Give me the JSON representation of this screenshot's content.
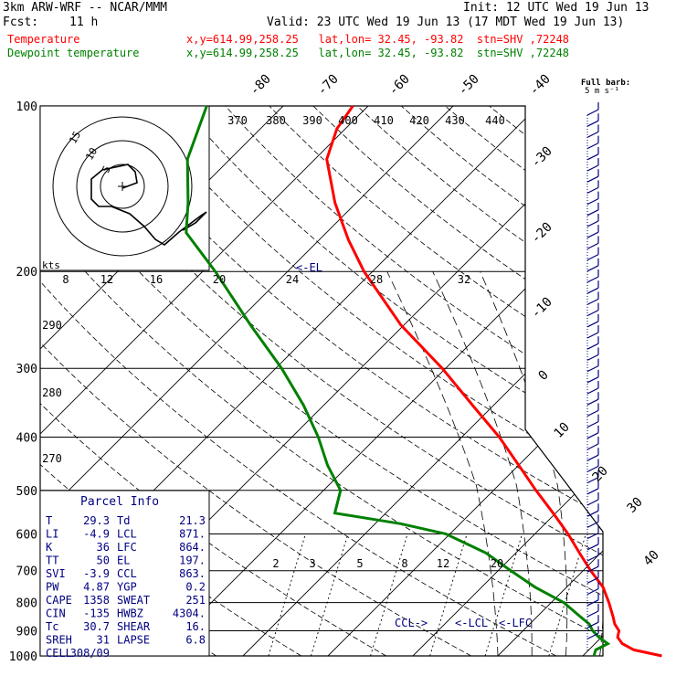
{
  "header": {
    "model": "3km ARW-WRF -- NCAR/MMM",
    "init": "Init: 12 UTC Wed 19 Jun 13",
    "fcst_label": "Fcst:",
    "fcst_value": "11 h",
    "valid": "Valid: 23 UTC Wed 19 Jun 13 (17 MDT Wed 19 Jun 13)",
    "temp_label": "Temperature",
    "temp_loc": "x,y=614.99,258.25   lat,lon= 32.45, -93.82  stn=SHV ,72248",
    "dew_label": "Dewpoint temperature",
    "dew_loc": "x,y=614.99,258.25   lat,lon= 32.45, -93.82  stn=SHV ,72248",
    "barb_note": "Full barb:",
    "barb_unit": "5 m s⁻¹"
  },
  "colors": {
    "temperature": "#ff0000",
    "dewpoint": "#008000",
    "wind": "#000080",
    "hodograph": "#000000"
  },
  "chart_data": [
    {
      "type": "line",
      "title": "Skew-T log-P diagram",
      "y_scale": "log",
      "ylim": [
        1000,
        100
      ],
      "pressure_ticks": [
        100,
        200,
        300,
        400,
        500,
        600,
        700,
        800,
        900,
        1000
      ],
      "isotherm_labels": [
        "-80",
        "-70",
        "-60",
        "-50",
        "-40",
        "-30",
        "-20",
        "-10",
        "0",
        "10",
        "20",
        "30",
        "40"
      ],
      "theta_labels": [
        "370",
        "380",
        "390",
        "400",
        "410",
        "420",
        "430",
        "440"
      ],
      "theta_low_labels": [
        "290",
        "280",
        "270"
      ],
      "mixing_ratio_labels": [
        "2",
        "3",
        "5",
        "8",
        "12",
        "20"
      ],
      "series": [
        {
          "name": "Temperature",
          "unit": "C",
          "points": [
            [
              1000,
              29.3
            ],
            [
              975,
              25.3
            ],
            [
              950,
              23.2
            ],
            [
              925,
              21.9
            ],
            [
              900,
              21.3
            ],
            [
              875,
              20.0
            ],
            [
              850,
              19.0
            ],
            [
              800,
              16.8
            ],
            [
              750,
              14.3
            ],
            [
              700,
              10.9
            ],
            [
              650,
              7.5
            ],
            [
              600,
              3.9
            ],
            [
              550,
              -0.3
            ],
            [
              500,
              -5.0
            ],
            [
              450,
              -10.0
            ],
            [
              400,
              -15.6
            ],
            [
              350,
              -22.5
            ],
            [
              300,
              -30.4
            ],
            [
              250,
              -40.4
            ],
            [
              200,
              -51.0
            ],
            [
              175,
              -56.6
            ],
            [
              150,
              -62.5
            ],
            [
              125,
              -68.6
            ],
            [
              110,
              -71.0
            ],
            [
              100,
              -71.8
            ]
          ]
        },
        {
          "name": "Dewpoint temperature",
          "unit": "C",
          "points": [
            [
              1000,
              21.3
            ],
            [
              975,
              20.8
            ],
            [
              950,
              21.5
            ],
            [
              925,
              19.7
            ],
            [
              900,
              18.2
            ],
            [
              875,
              17.0
            ],
            [
              850,
              15.2
            ],
            [
              800,
              11.5
            ],
            [
              750,
              6.3
            ],
            [
              700,
              1.5
            ],
            [
              650,
              -3.5
            ],
            [
              600,
              -10.5
            ],
            [
              575,
              -17.0
            ],
            [
              550,
              -26.0
            ],
            [
              500,
              -28.0
            ],
            [
              450,
              -32.5
            ],
            [
              400,
              -36.9
            ],
            [
              350,
              -42.4
            ],
            [
              300,
              -49.3
            ],
            [
              250,
              -58.1
            ],
            [
              200,
              -68.5
            ],
            [
              170,
              -76.5
            ],
            [
              150,
              -79.8
            ],
            [
              125,
              -85.0
            ],
            [
              100,
              -89.0
            ]
          ]
        }
      ],
      "annotations": [
        "<-EL",
        "CCL->",
        "<-LCL",
        "<-LFC"
      ]
    },
    {
      "type": "scatter",
      "title": "hodograph",
      "unit_label": "kts",
      "ring_labels": [
        "5",
        "10",
        "15"
      ],
      "points": [
        [
          0,
          0
        ],
        [
          1,
          -3
        ],
        [
          3,
          -5
        ],
        [
          6,
          -6
        ],
        [
          8,
          -8
        ],
        [
          12,
          -9
        ],
        [
          16,
          -9
        ],
        [
          20,
          -7
        ],
        [
          24,
          -6
        ]
      ]
    },
    {
      "type": "line",
      "title": "dewpoint wind-speed scale",
      "tick_labels": [
        "8",
        "12",
        "16",
        "20",
        "24",
        "28",
        "32"
      ]
    }
  ],
  "parcel": {
    "title": "Parcel Info",
    "rows": [
      {
        "label": "T",
        "value": "29.3",
        "label2": "Td",
        "value2": "21.3"
      },
      {
        "label": "LI",
        "value": "-4.9",
        "label2": "LCL",
        "value2": "871."
      },
      {
        "label": "K",
        "value": "36",
        "label2": "LFC",
        "value2": "864."
      },
      {
        "label": "TT",
        "value": "50",
        "label2": "EL",
        "value2": "197."
      },
      {
        "label": "SVI",
        "value": "-3.9",
        "label2": "CCL",
        "value2": "863."
      },
      {
        "label": "PW",
        "value": "4.87",
        "label2": "YGP",
        "value2": "0.2"
      },
      {
        "label": "CAPE",
        "value": "1358",
        "label2": "SWEAT",
        "value2": "251"
      },
      {
        "label": "CIN",
        "value": "-135",
        "label2": "HWBZ",
        "value2": "4304."
      },
      {
        "label": "Tc",
        "value": "30.7",
        "label2": "SHEAR",
        "value2": "16."
      },
      {
        "label": "SREH",
        "value": "31",
        "label2": "LAPSE",
        "value2": "6.8"
      },
      {
        "label": "CELL",
        "value": "308/09",
        "label2": "",
        "value2": ""
      }
    ]
  }
}
